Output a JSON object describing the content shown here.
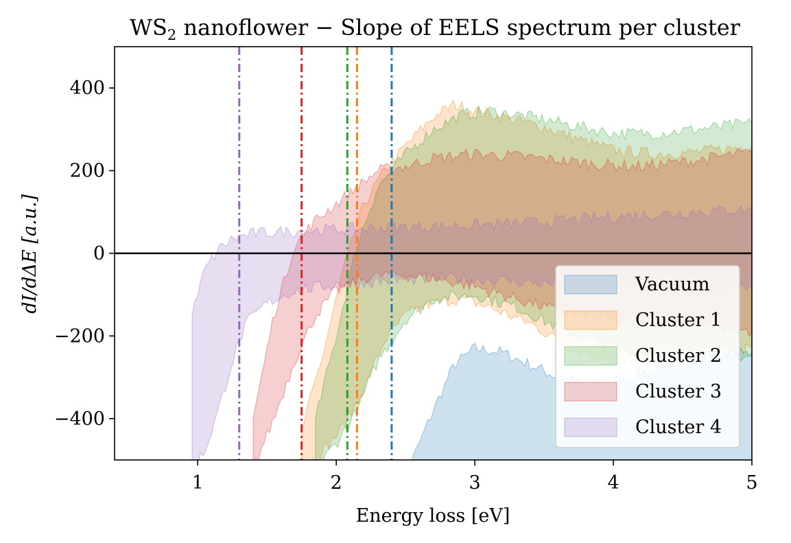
{
  "chart_data": {
    "type": "area",
    "title_main": "WS",
    "title_sub": "2",
    "title_rest": " nanoflower − Slope of EELS spectrum per cluster",
    "xlabel": "Energy loss [eV]",
    "ylabel": "dI/dΔE [a.u.]",
    "xlim": [
      0.4,
      5.0
    ],
    "ylim": [
      -500,
      500
    ],
    "x_ticks": [
      1,
      2,
      3,
      4,
      5
    ],
    "x_tick_labels": [
      "1",
      "2",
      "3",
      "4",
      "5"
    ],
    "y_ticks": [
      -400,
      -200,
      0,
      200,
      400
    ],
    "y_tick_labels": [
      "−400",
      "−200",
      "0",
      "200",
      "400"
    ],
    "grid": false,
    "legend_position": "lower-right",
    "zero_line": 0,
    "series": [
      {
        "name": "Vacuum",
        "color": "#1f77b4",
        "vline": 2.4,
        "lower": [
          [
            2.4,
            -560
          ],
          [
            2.55,
            -500
          ],
          [
            2.7,
            -380
          ],
          [
            2.85,
            -270
          ],
          [
            3.0,
            -230
          ],
          [
            3.2,
            -240
          ],
          [
            3.4,
            -270
          ],
          [
            3.6,
            -300
          ],
          [
            3.8,
            -320
          ],
          [
            4.0,
            -310
          ],
          [
            4.2,
            -290
          ],
          [
            4.5,
            -270
          ],
          [
            4.8,
            -250
          ],
          [
            5.0,
            -240
          ]
        ],
        "upper": [
          [
            2.4,
            -560
          ],
          [
            2.55,
            -500
          ],
          [
            2.7,
            -380
          ],
          [
            2.85,
            -270
          ],
          [
            3.0,
            -230
          ],
          [
            3.2,
            -240
          ],
          [
            3.4,
            -270
          ],
          [
            3.6,
            -300
          ],
          [
            3.8,
            -320
          ],
          [
            4.0,
            -310
          ],
          [
            4.2,
            -290
          ],
          [
            4.5,
            -270
          ],
          [
            4.8,
            -250
          ],
          [
            5.0,
            -240
          ]
        ]
      },
      {
        "name": "Cluster 1",
        "color": "#ff7f0e",
        "vline": 2.15,
        "lower": [
          [
            1.75,
            -520
          ],
          [
            1.9,
            -480
          ],
          [
            2.05,
            -420
          ],
          [
            2.2,
            -330
          ],
          [
            2.35,
            -210
          ],
          [
            2.5,
            -150
          ],
          [
            2.7,
            -120
          ],
          [
            2.9,
            -110
          ],
          [
            3.1,
            -130
          ],
          [
            3.4,
            -170
          ],
          [
            3.7,
            -230
          ],
          [
            4.0,
            -270
          ],
          [
            4.3,
            -250
          ],
          [
            4.6,
            -230
          ],
          [
            5.0,
            -230
          ]
        ],
        "upper": [
          [
            1.75,
            -430
          ],
          [
            1.9,
            -250
          ],
          [
            2.05,
            -40
          ],
          [
            2.2,
            120
          ],
          [
            2.35,
            200
          ],
          [
            2.5,
            260
          ],
          [
            2.7,
            330
          ],
          [
            2.85,
            360
          ],
          [
            3.0,
            345
          ],
          [
            3.2,
            330
          ],
          [
            3.5,
            305
          ],
          [
            3.8,
            270
          ],
          [
            4.0,
            250
          ],
          [
            4.3,
            240
          ],
          [
            4.6,
            245
          ],
          [
            5.0,
            260
          ]
        ]
      },
      {
        "name": "Cluster 2",
        "color": "#2ca02c",
        "vline": 2.08,
        "lower": [
          [
            1.85,
            -520
          ],
          [
            2.0,
            -460
          ],
          [
            2.15,
            -380
          ],
          [
            2.3,
            -260
          ],
          [
            2.5,
            -160
          ],
          [
            2.7,
            -110
          ],
          [
            3.0,
            -100
          ],
          [
            3.3,
            -130
          ],
          [
            3.6,
            -180
          ],
          [
            3.9,
            -220
          ],
          [
            4.2,
            -240
          ],
          [
            4.6,
            -240
          ],
          [
            5.0,
            -250
          ]
        ],
        "upper": [
          [
            1.85,
            -400
          ],
          [
            2.0,
            -200
          ],
          [
            2.15,
            20
          ],
          [
            2.3,
            160
          ],
          [
            2.5,
            240
          ],
          [
            2.7,
            300
          ],
          [
            2.9,
            335
          ],
          [
            3.1,
            345
          ],
          [
            3.4,
            330
          ],
          [
            3.7,
            310
          ],
          [
            4.0,
            290
          ],
          [
            4.3,
            290
          ],
          [
            4.6,
            300
          ],
          [
            5.0,
            315
          ]
        ]
      },
      {
        "name": "Cluster 3",
        "color": "#d62728",
        "vline": 1.75,
        "lower": [
          [
            1.4,
            -520
          ],
          [
            1.55,
            -400
          ],
          [
            1.7,
            -260
          ],
          [
            1.85,
            -150
          ],
          [
            2.0,
            -90
          ],
          [
            2.2,
            -60
          ],
          [
            2.4,
            -50
          ],
          [
            2.7,
            -60
          ],
          [
            3.0,
            -80
          ],
          [
            3.3,
            -110
          ],
          [
            3.6,
            -140
          ],
          [
            3.9,
            -160
          ],
          [
            4.2,
            -170
          ],
          [
            4.6,
            -170
          ],
          [
            5.0,
            -190
          ]
        ],
        "upper": [
          [
            1.4,
            -400
          ],
          [
            1.55,
            -150
          ],
          [
            1.7,
            20
          ],
          [
            1.85,
            80
          ],
          [
            2.0,
            120
          ],
          [
            2.15,
            160
          ],
          [
            2.3,
            200
          ],
          [
            2.5,
            210
          ],
          [
            2.7,
            230
          ],
          [
            3.0,
            240
          ],
          [
            3.3,
            235
          ],
          [
            3.6,
            225
          ],
          [
            3.9,
            215
          ],
          [
            4.2,
            210
          ],
          [
            4.6,
            225
          ],
          [
            5.0,
            245
          ]
        ]
      },
      {
        "name": "Cluster 4",
        "color": "#9467bd",
        "vline": 1.3,
        "lower": [
          [
            0.96,
            -520
          ],
          [
            1.05,
            -480
          ],
          [
            1.15,
            -380
          ],
          [
            1.25,
            -260
          ],
          [
            1.35,
            -170
          ],
          [
            1.5,
            -120
          ],
          [
            1.7,
            -90
          ],
          [
            2.0,
            -75
          ],
          [
            2.4,
            -65
          ],
          [
            2.8,
            -60
          ],
          [
            3.2,
            -65
          ],
          [
            3.6,
            -75
          ],
          [
            4.0,
            -80
          ],
          [
            4.4,
            -85
          ],
          [
            5.0,
            -85
          ]
        ],
        "upper": [
          [
            0.96,
            -150
          ],
          [
            1.05,
            -40
          ],
          [
            1.15,
            10
          ],
          [
            1.25,
            35
          ],
          [
            1.4,
            48
          ],
          [
            1.6,
            52
          ],
          [
            1.8,
            55
          ],
          [
            2.0,
            58
          ],
          [
            2.4,
            62
          ],
          [
            2.8,
            66
          ],
          [
            3.2,
            70
          ],
          [
            3.6,
            78
          ],
          [
            4.0,
            88
          ],
          [
            4.4,
            96
          ],
          [
            4.8,
            104
          ],
          [
            5.0,
            106
          ]
        ]
      }
    ]
  }
}
